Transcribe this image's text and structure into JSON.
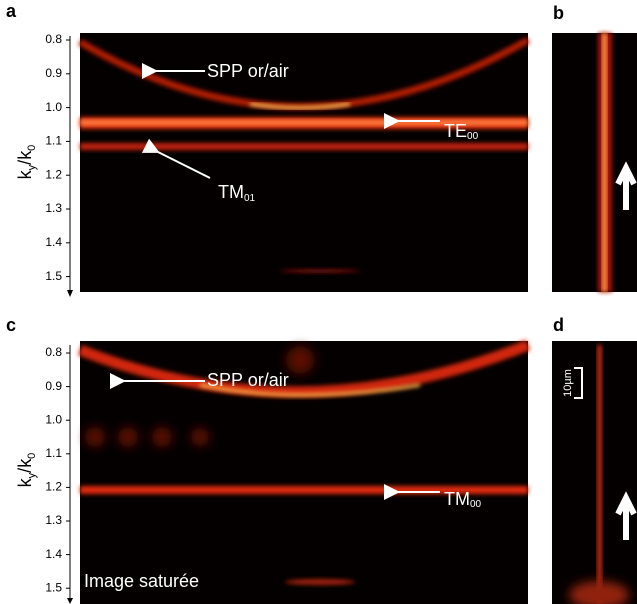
{
  "panels": [
    {
      "label": "a",
      "axis_label": [
        "k",
        "y",
        "/k",
        "0"
      ],
      "ticks": [
        "0.8",
        "0.9",
        "1.0",
        "1.1",
        "1.2",
        "1.3",
        "1.4",
        "1.5"
      ],
      "annotations": [
        {
          "text": "SPP or/air"
        },
        {
          "text": "TE",
          "subscript": "00"
        },
        {
          "text": "TM",
          "subscript": "01"
        }
      ]
    },
    {
      "label": "b"
    },
    {
      "label": "c",
      "axis_label": [
        "k",
        "y",
        "/k",
        "0"
      ],
      "ticks": [
        "0.8",
        "0.9",
        "1.0",
        "1.1",
        "1.2",
        "1.3",
        "1.4",
        "1.5"
      ],
      "annotations": [
        {
          "text": "SPP or/air"
        },
        {
          "text": "TM",
          "subscript": "00"
        }
      ],
      "caption": "Image saturée"
    },
    {
      "label": "d",
      "scale": "10µm"
    }
  ]
}
